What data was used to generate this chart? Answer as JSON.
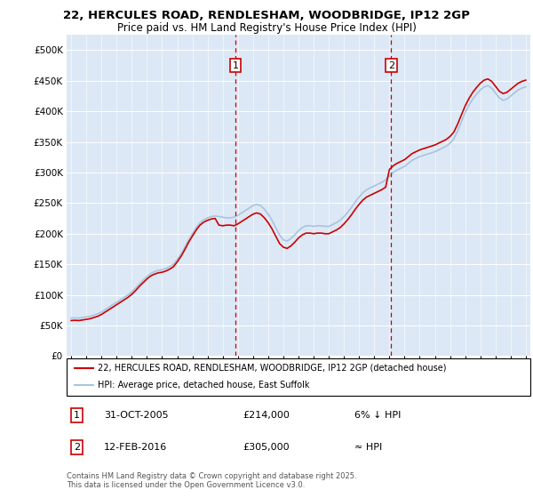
{
  "title_line1": "22, HERCULES ROAD, RENDLESHAM, WOODBRIDGE, IP12 2GP",
  "title_line2": "Price paid vs. HM Land Registry's House Price Index (HPI)",
  "ylim": [
    0,
    525000
  ],
  "yticks": [
    0,
    50000,
    100000,
    150000,
    200000,
    250000,
    300000,
    350000,
    400000,
    450000,
    500000
  ],
  "ytick_labels": [
    "£0",
    "£50K",
    "£100K",
    "£150K",
    "£200K",
    "£250K",
    "£300K",
    "£350K",
    "£400K",
    "£450K",
    "£500K"
  ],
  "marker1_date": 2005.83,
  "marker1_label": "1",
  "marker2_date": 2016.12,
  "marker2_label": "2",
  "hpi_color": "#a8c4e0",
  "price_color": "#cc0000",
  "marker_box_color": "#cc0000",
  "background_color": "#ffffff",
  "plot_bg_color": "#dce8f5",
  "grid_color": "#ffffff",
  "legend_label1": "22, HERCULES ROAD, RENDLESHAM, WOODBRIDGE, IP12 2GP (detached house)",
  "legend_label2": "HPI: Average price, detached house, East Suffolk",
  "annotation1_num": "1",
  "annotation1_date": "31-OCT-2005",
  "annotation1_price": "£214,000",
  "annotation1_hpi": "6% ↓ HPI",
  "annotation2_num": "2",
  "annotation2_date": "12-FEB-2016",
  "annotation2_price": "£305,000",
  "annotation2_hpi": "≈ HPI",
  "footer": "Contains HM Land Registry data © Crown copyright and database right 2025.\nThis data is licensed under the Open Government Licence v3.0.",
  "hpi_data_x": [
    1995.0,
    1995.25,
    1995.5,
    1995.75,
    1996.0,
    1996.25,
    1996.5,
    1996.75,
    1997.0,
    1997.25,
    1997.5,
    1997.75,
    1998.0,
    1998.25,
    1998.5,
    1998.75,
    1999.0,
    1999.25,
    1999.5,
    1999.75,
    2000.0,
    2000.25,
    2000.5,
    2000.75,
    2001.0,
    2001.25,
    2001.5,
    2001.75,
    2002.0,
    2002.25,
    2002.5,
    2002.75,
    2003.0,
    2003.25,
    2003.5,
    2003.75,
    2004.0,
    2004.25,
    2004.5,
    2004.75,
    2005.0,
    2005.25,
    2005.5,
    2005.75,
    2006.0,
    2006.25,
    2006.5,
    2006.75,
    2007.0,
    2007.25,
    2007.5,
    2007.75,
    2008.0,
    2008.25,
    2008.5,
    2008.75,
    2009.0,
    2009.25,
    2009.5,
    2009.75,
    2010.0,
    2010.25,
    2010.5,
    2010.75,
    2011.0,
    2011.25,
    2011.5,
    2011.75,
    2012.0,
    2012.25,
    2012.5,
    2012.75,
    2013.0,
    2013.25,
    2013.5,
    2013.75,
    2014.0,
    2014.25,
    2014.5,
    2014.75,
    2015.0,
    2015.25,
    2015.5,
    2015.75,
    2016.0,
    2016.25,
    2016.5,
    2016.75,
    2017.0,
    2017.25,
    2017.5,
    2017.75,
    2018.0,
    2018.25,
    2018.5,
    2018.75,
    2019.0,
    2019.25,
    2019.5,
    2019.75,
    2020.0,
    2020.25,
    2020.5,
    2020.75,
    2021.0,
    2021.25,
    2021.5,
    2021.75,
    2022.0,
    2022.25,
    2022.5,
    2022.75,
    2023.0,
    2023.25,
    2023.5,
    2023.75,
    2024.0,
    2024.25,
    2024.5,
    2024.75,
    2025.0
  ],
  "hpi_data_y": [
    62000,
    62500,
    62000,
    63000,
    64000,
    65000,
    67000,
    69000,
    72000,
    76000,
    80000,
    84000,
    88000,
    92000,
    96000,
    100000,
    105000,
    111000,
    118000,
    124000,
    130000,
    135000,
    138000,
    140000,
    141000,
    143000,
    146000,
    150000,
    158000,
    167000,
    178000,
    190000,
    200000,
    210000,
    218000,
    223000,
    226000,
    228000,
    229000,
    228000,
    227000,
    226000,
    226000,
    227000,
    230000,
    234000,
    238000,
    242000,
    246000,
    248000,
    246000,
    240000,
    232000,
    222000,
    210000,
    198000,
    190000,
    188000,
    192000,
    198000,
    205000,
    210000,
    213000,
    213000,
    212000,
    213000,
    213000,
    212000,
    212000,
    215000,
    218000,
    222000,
    228000,
    235000,
    243000,
    252000,
    260000,
    267000,
    272000,
    275000,
    278000,
    281000,
    284000,
    288000,
    294000,
    300000,
    304000,
    307000,
    310000,
    315000,
    320000,
    323000,
    326000,
    328000,
    330000,
    332000,
    334000,
    337000,
    340000,
    343000,
    348000,
    355000,
    368000,
    383000,
    398000,
    410000,
    420000,
    428000,
    435000,
    440000,
    442000,
    438000,
    430000,
    422000,
    418000,
    420000,
    425000,
    430000,
    435000,
    438000,
    440000
  ],
  "price_data_x": [
    1995.0,
    1995.25,
    1995.5,
    1995.75,
    1996.0,
    1996.25,
    1996.5,
    1996.75,
    1997.0,
    1997.25,
    1997.5,
    1997.75,
    1998.0,
    1998.25,
    1998.5,
    1998.75,
    1999.0,
    1999.25,
    1999.5,
    1999.75,
    2000.0,
    2000.25,
    2000.5,
    2000.75,
    2001.0,
    2001.25,
    2001.5,
    2001.75,
    2002.0,
    2002.25,
    2002.5,
    2002.75,
    2003.0,
    2003.25,
    2003.5,
    2003.75,
    2004.0,
    2004.25,
    2004.5,
    2004.75,
    2005.0,
    2005.25,
    2005.5,
    2005.75,
    2006.0,
    2006.25,
    2006.5,
    2006.75,
    2007.0,
    2007.25,
    2007.5,
    2007.75,
    2008.0,
    2008.25,
    2008.5,
    2008.75,
    2009.0,
    2009.25,
    2009.5,
    2009.75,
    2010.0,
    2010.25,
    2010.5,
    2010.75,
    2011.0,
    2011.25,
    2011.5,
    2011.75,
    2012.0,
    2012.25,
    2012.5,
    2012.75,
    2013.0,
    2013.25,
    2013.5,
    2013.75,
    2014.0,
    2014.25,
    2014.5,
    2014.75,
    2015.0,
    2015.25,
    2015.5,
    2015.75,
    2016.0,
    2016.25,
    2016.5,
    2016.75,
    2017.0,
    2017.25,
    2017.5,
    2017.75,
    2018.0,
    2018.25,
    2018.5,
    2018.75,
    2019.0,
    2019.25,
    2019.5,
    2019.75,
    2020.0,
    2020.25,
    2020.5,
    2020.75,
    2021.0,
    2021.25,
    2021.5,
    2021.75,
    2022.0,
    2022.25,
    2022.5,
    2022.75,
    2023.0,
    2023.25,
    2023.5,
    2023.75,
    2024.0,
    2024.25,
    2024.5,
    2024.75,
    2025.0
  ],
  "price_data_y": [
    58000,
    58500,
    58000,
    59000,
    60000,
    61000,
    63000,
    65000,
    68000,
    72000,
    76000,
    80000,
    84000,
    88000,
    92000,
    96000,
    101000,
    107000,
    114000,
    120000,
    126000,
    131000,
    134000,
    136000,
    137000,
    139000,
    142000,
    146000,
    154000,
    163000,
    174000,
    186000,
    196000,
    206000,
    214000,
    219000,
    222000,
    224000,
    225000,
    214000,
    213000,
    214000,
    214000,
    213000,
    216000,
    220000,
    224000,
    228000,
    232000,
    234000,
    232000,
    226000,
    218000,
    208000,
    196000,
    184000,
    178000,
    176000,
    180000,
    186000,
    193000,
    198000,
    201000,
    201000,
    200000,
    201000,
    201000,
    200000,
    200000,
    203000,
    206000,
    210000,
    216000,
    223000,
    231000,
    240000,
    248000,
    255000,
    260000,
    263000,
    266000,
    269000,
    272000,
    276000,
    305000,
    311000,
    315000,
    318000,
    321000,
    326000,
    331000,
    334000,
    337000,
    339000,
    341000,
    343000,
    345000,
    348000,
    351000,
    354000,
    359000,
    366000,
    379000,
    394000,
    409000,
    421000,
    431000,
    439000,
    446000,
    451000,
    453000,
    449000,
    441000,
    433000,
    429000,
    431000,
    436000,
    441000,
    446000,
    449000,
    451000
  ]
}
